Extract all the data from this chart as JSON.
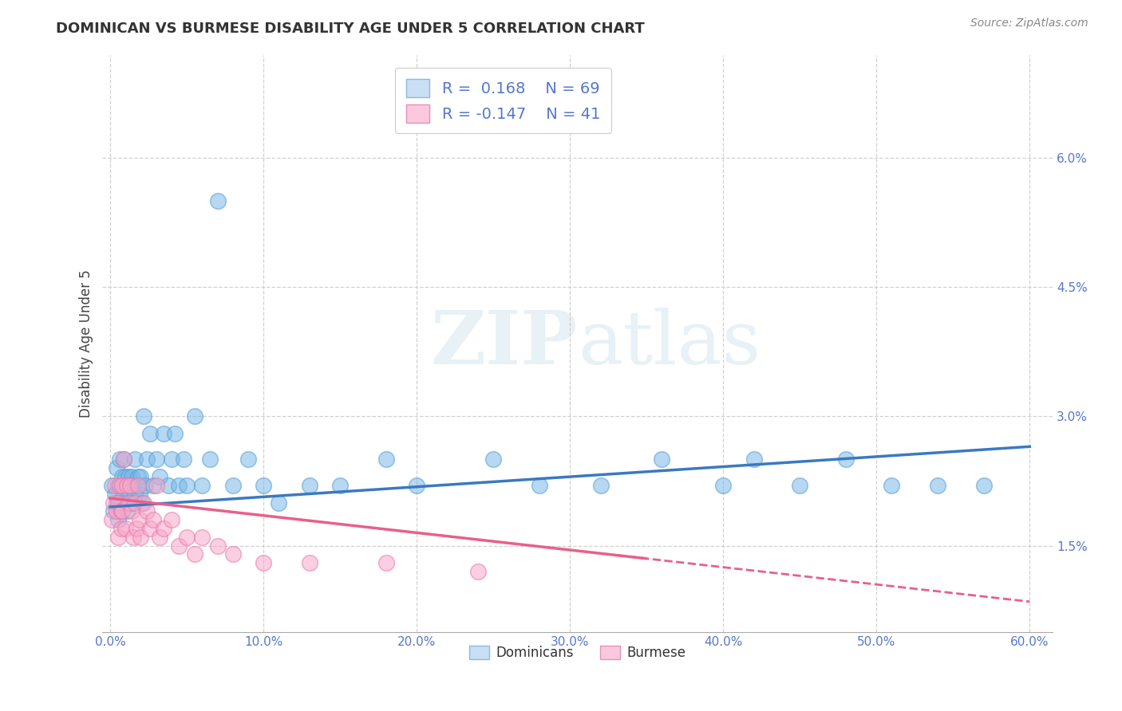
{
  "title": "DOMINICAN VS BURMESE DISABILITY AGE UNDER 5 CORRELATION CHART",
  "source": "Source: ZipAtlas.com",
  "ylabel": "Disability Age Under 5",
  "xlim": [
    -0.005,
    0.615
  ],
  "ylim": [
    0.005,
    0.072
  ],
  "xticks": [
    0.0,
    0.1,
    0.2,
    0.3,
    0.4,
    0.5,
    0.6
  ],
  "xticklabels": [
    "0.0%",
    "10.0%",
    "20.0%",
    "30.0%",
    "40.0%",
    "50.0%",
    "60.0%"
  ],
  "yticks": [
    0.015,
    0.03,
    0.045,
    0.06
  ],
  "yticklabels": [
    "1.5%",
    "3.0%",
    "4.5%",
    "6.0%"
  ],
  "dominican_R": 0.168,
  "dominican_N": 69,
  "burmese_R": -0.147,
  "burmese_N": 41,
  "dominican_color": "#7ab8e8",
  "dominican_edge": "#5a9fd4",
  "burmese_color": "#f9a8c9",
  "burmese_edge": "#e87aab",
  "trend_blue": "#3a7abf",
  "trend_pink": "#e8608a",
  "background": "#ffffff",
  "grid_color": "#cccccc",
  "tick_color": "#5577cc",
  "dom_x": [
    0.001,
    0.002,
    0.003,
    0.004,
    0.004,
    0.005,
    0.005,
    0.006,
    0.006,
    0.007,
    0.007,
    0.008,
    0.008,
    0.009,
    0.009,
    0.01,
    0.01,
    0.011,
    0.011,
    0.012,
    0.012,
    0.013,
    0.014,
    0.014,
    0.015,
    0.016,
    0.016,
    0.017,
    0.018,
    0.019,
    0.02,
    0.021,
    0.022,
    0.023,
    0.024,
    0.026,
    0.028,
    0.03,
    0.032,
    0.035,
    0.038,
    0.04,
    0.042,
    0.045,
    0.048,
    0.05,
    0.055,
    0.06,
    0.065,
    0.07,
    0.08,
    0.09,
    0.1,
    0.11,
    0.13,
    0.15,
    0.18,
    0.2,
    0.25,
    0.28,
    0.32,
    0.36,
    0.4,
    0.42,
    0.45,
    0.48,
    0.51,
    0.54,
    0.57
  ],
  "dom_y": [
    0.022,
    0.019,
    0.021,
    0.024,
    0.02,
    0.022,
    0.018,
    0.025,
    0.02,
    0.022,
    0.019,
    0.023,
    0.02,
    0.025,
    0.021,
    0.023,
    0.02,
    0.022,
    0.019,
    0.023,
    0.021,
    0.02,
    0.023,
    0.02,
    0.022,
    0.021,
    0.025,
    0.022,
    0.023,
    0.021,
    0.023,
    0.02,
    0.03,
    0.022,
    0.025,
    0.028,
    0.022,
    0.025,
    0.023,
    0.028,
    0.022,
    0.025,
    0.028,
    0.022,
    0.025,
    0.022,
    0.03,
    0.022,
    0.025,
    0.055,
    0.022,
    0.025,
    0.022,
    0.02,
    0.022,
    0.022,
    0.025,
    0.022,
    0.025,
    0.022,
    0.022,
    0.025,
    0.022,
    0.025,
    0.022,
    0.025,
    0.022,
    0.022,
    0.022
  ],
  "bur_x": [
    0.001,
    0.002,
    0.003,
    0.004,
    0.005,
    0.005,
    0.006,
    0.007,
    0.007,
    0.008,
    0.008,
    0.009,
    0.01,
    0.011,
    0.012,
    0.013,
    0.014,
    0.015,
    0.016,
    0.017,
    0.018,
    0.019,
    0.02,
    0.022,
    0.024,
    0.026,
    0.028,
    0.03,
    0.032,
    0.035,
    0.04,
    0.045,
    0.05,
    0.055,
    0.06,
    0.07,
    0.08,
    0.1,
    0.13,
    0.18,
    0.24
  ],
  "bur_y": [
    0.018,
    0.02,
    0.022,
    0.019,
    0.02,
    0.016,
    0.022,
    0.019,
    0.017,
    0.022,
    0.019,
    0.025,
    0.017,
    0.022,
    0.02,
    0.022,
    0.019,
    0.016,
    0.02,
    0.017,
    0.022,
    0.018,
    0.016,
    0.02,
    0.019,
    0.017,
    0.018,
    0.022,
    0.016,
    0.017,
    0.018,
    0.015,
    0.016,
    0.014,
    0.016,
    0.015,
    0.014,
    0.013,
    0.013,
    0.013,
    0.012
  ]
}
